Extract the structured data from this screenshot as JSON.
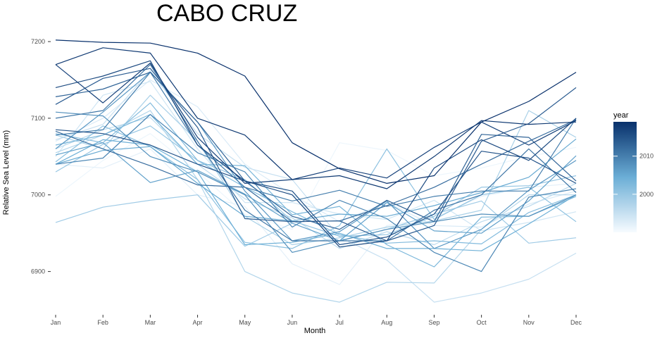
{
  "chart_data": {
    "type": "line",
    "title": "CABO CRUZ",
    "xlabel": "Month",
    "ylabel": "Relative Sea Level (mm)",
    "categories": [
      "Jan",
      "Feb",
      "Mar",
      "Apr",
      "May",
      "Jun",
      "Jul",
      "Aug",
      "Sep",
      "Oct",
      "Nov",
      "Dec"
    ],
    "ylim": [
      6850,
      7212
    ],
    "yticks": [
      6900,
      7000,
      7100,
      7200
    ],
    "grid": false,
    "color_scale": {
      "title": "year",
      "range": [
        1990,
        2019
      ],
      "ticks": [
        2000,
        2010
      ],
      "low_color": "#f7fbff",
      "mid_color": "#6baed6",
      "high_color": "#08306b",
      "placement": "right"
    },
    "series": [
      {
        "year": 1991,
        "values": [
          6998,
          7045,
          7080,
          7030,
          6975,
          6955,
          7068,
          7058,
          7025,
          7035,
          7050,
          7062
        ]
      },
      {
        "year": 1992,
        "values": [
          7040,
          7035,
          7060,
          7000,
          6985,
          6910,
          6883,
          6960,
          6970,
          6998,
          7010,
          7015
        ]
      },
      {
        "year": 1993,
        "values": [
          7070,
          7100,
          7150,
          7115,
          7040,
          7000,
          6965,
          6990,
          6960,
          6958,
          6988,
          7005
        ]
      },
      {
        "year": 1994,
        "values": [
          7050,
          7130,
          7148,
          7060,
          6990,
          6990,
          6975,
          6968,
          6993,
          6953,
          6964,
          6978
        ]
      },
      {
        "year": 1995,
        "values": [
          7072,
          7092,
          7162,
          7080,
          7036,
          7020,
          6945,
          6915,
          6860,
          6872,
          6890,
          6924
        ]
      },
      {
        "year": 1996,
        "values": [
          7060,
          7085,
          7101,
          7040,
          6995,
          6970,
          6930,
          6952,
          6935,
          6965,
          6985,
          7015
        ]
      },
      {
        "year": 1997,
        "values": [
          7055,
          7078,
          7110,
          7020,
          6900,
          6872,
          6860,
          6886,
          6885,
          6955,
          7000,
          7000
        ]
      },
      {
        "year": 1998,
        "values": [
          7078,
          7060,
          7130,
          7070,
          6972,
          6935,
          6944,
          6958,
          6966,
          6980,
          7110,
          7075
        ]
      },
      {
        "year": 1999,
        "values": [
          6964,
          6984,
          6993,
          7000,
          6933,
          6963,
          6940,
          6955,
          6975,
          6992,
          6937,
          6944
        ]
      },
      {
        "year": 2000,
        "values": [
          7030,
          7066,
          7090,
          7045,
          7020,
          6966,
          6946,
          6948,
          6972,
          7010,
          7012,
          7025
        ]
      },
      {
        "year": 2001,
        "values": [
          7043,
          7090,
          7063,
          7020,
          6938,
          6930,
          6960,
          7060,
          6968,
          7000,
          7010,
          6965
        ]
      },
      {
        "year": 2002,
        "values": [
          7080,
          7068,
          7120,
          7045,
          7010,
          6978,
          6948,
          6937,
          6940,
          6936,
          6977,
          7000
        ]
      },
      {
        "year": 2003,
        "values": [
          7065,
          7078,
          7105,
          7040,
          7038,
          6974,
          6985,
          6935,
          6906,
          6971,
          6972,
          6998
        ]
      },
      {
        "year": 2004,
        "values": [
          7040,
          7072,
          7065,
          7030,
          6935,
          6938,
          6950,
          6930,
          6930,
          6927,
          6962,
          7000
        ]
      },
      {
        "year": 2005,
        "values": [
          7040,
          7058,
          7063,
          7015,
          6972,
          6966,
          6975,
          6972,
          6986,
          7003,
          7023,
          7073
        ]
      },
      {
        "year": 2006,
        "values": [
          7052,
          7068,
          7016,
          7032,
          7001,
          6963,
          6940,
          6990,
          6953,
          6950,
          6992,
          7051
        ]
      },
      {
        "year": 2007,
        "values": [
          7060,
          7108,
          7160,
          7095,
          7005,
          6940,
          6952,
          6992,
          6930,
          6955,
          7006,
          7045
        ]
      },
      {
        "year": 2008,
        "values": [
          7108,
          7103,
          7050,
          7030,
          7000,
          6925,
          6940,
          6955,
          6965,
          6975,
          6972,
          7000
        ]
      },
      {
        "year": 2009,
        "values": [
          7040,
          7048,
          7105,
          7055,
          7030,
          6958,
          6993,
          6969,
          6925,
          6900,
          6997,
          7008
        ]
      },
      {
        "year": 2010,
        "values": [
          7078,
          7085,
          7160,
          7065,
          7010,
          6992,
          7006,
          6985,
          6998,
          7005,
          7005,
          7100
        ]
      },
      {
        "year": 2011,
        "values": [
          7100,
          7110,
          7170,
          7070,
          6980,
          6940,
          6940,
          6940,
          6980,
          7000,
          7060,
          7003
        ]
      },
      {
        "year": 2012,
        "values": [
          7083,
          7060,
          7038,
          7013,
          7010,
          6965,
          6966,
          6986,
          7010,
          7040,
          7070,
          7098
        ]
      },
      {
        "year": 2013,
        "values": [
          7128,
          7138,
          7160,
          7095,
          7018,
          6972,
          6955,
          6993,
          6965,
          7079,
          7075,
          7018
        ]
      },
      {
        "year": 2014,
        "values": [
          7118,
          7152,
          7165,
          7088,
          6969,
          6965,
          6966,
          6940,
          6960,
          7070,
          7093,
          7140
        ]
      },
      {
        "year": 2015,
        "values": [
          7085,
          7080,
          7065,
          7040,
          7018,
          7005,
          6935,
          6945,
          6975,
          7057,
          7048,
          7015
        ]
      },
      {
        "year": 2016,
        "values": [
          7140,
          7155,
          7175,
          7065,
          7018,
          7000,
          6932,
          6940,
          7035,
          7072,
          7045,
          7100
        ]
      },
      {
        "year": 2017,
        "values": [
          7170,
          7120,
          7172,
          7075,
          7015,
          7020,
          7035,
          7022,
          7062,
          7095,
          7065,
          7097
        ]
      },
      {
        "year": 2018,
        "values": [
          7170,
          7192,
          7185,
          7100,
          7078,
          7020,
          7025,
          7008,
          7050,
          7097,
          7092,
          7095
        ]
      },
      {
        "year": 2019,
        "values": [
          7202,
          7199,
          7198,
          7185,
          7155,
          7068,
          7034,
          7015,
          7025,
          7095,
          7122,
          7160
        ]
      }
    ]
  }
}
